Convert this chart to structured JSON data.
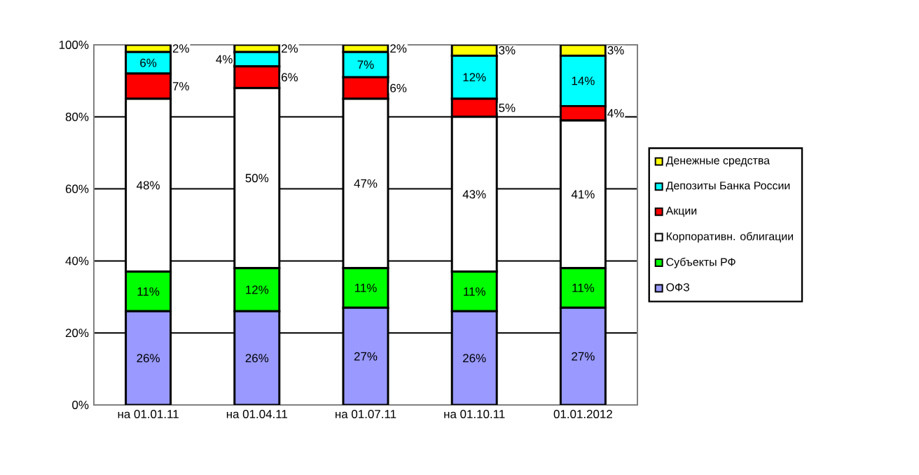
{
  "chart_data": {
    "type": "bar",
    "stacked": true,
    "categories": [
      "на 01.01.11",
      "на 01.04.11",
      "на 01.07.11",
      "на 01.10.11",
      "01.01.2012"
    ],
    "series": [
      {
        "name": "ОФЗ",
        "color": "#9999ff",
        "values": [
          26,
          26,
          27,
          26,
          27
        ],
        "value_labels": [
          "26%",
          "26%",
          "27%",
          "26%",
          "27%"
        ]
      },
      {
        "name": "Субъекты РФ",
        "color": "#00ff00",
        "values": [
          11,
          12,
          11,
          11,
          11
        ],
        "value_labels": [
          "11%",
          "12%",
          "11%",
          "11%",
          "11%"
        ]
      },
      {
        "name": "Корпоративн. облигации",
        "color": "#ffffff",
        "values": [
          48,
          50,
          47,
          43,
          41
        ],
        "value_labels": [
          "48%",
          "50%",
          "47%",
          "43%",
          "41%"
        ]
      },
      {
        "name": "Акции",
        "color": "#ff0000",
        "values": [
          7,
          6,
          6,
          5,
          4
        ],
        "value_labels": [
          "7%",
          "6%",
          "6%",
          "5%",
          "4%"
        ]
      },
      {
        "name": "Депозиты Банка России",
        "color": "#00ffff",
        "values": [
          6,
          4,
          7,
          12,
          14
        ],
        "value_labels": [
          "6%",
          "4%",
          "7%",
          "12%",
          "14%"
        ]
      },
      {
        "name": "Денежные средства",
        "color": "#ffff00",
        "values": [
          2,
          2,
          2,
          3,
          3
        ],
        "value_labels": [
          "2%",
          "2%",
          "2%",
          "3%",
          "3%"
        ]
      }
    ],
    "ylim": [
      0,
      100
    ],
    "yticks": [
      {
        "value": 0,
        "label": "0%"
      },
      {
        "value": 20,
        "label": "20%"
      },
      {
        "value": 40,
        "label": "40%"
      },
      {
        "value": 60,
        "label": "60%"
      },
      {
        "value": 80,
        "label": "80%"
      },
      {
        "value": 100,
        "label": "100%"
      }
    ],
    "grid": "y",
    "legend": "right"
  }
}
